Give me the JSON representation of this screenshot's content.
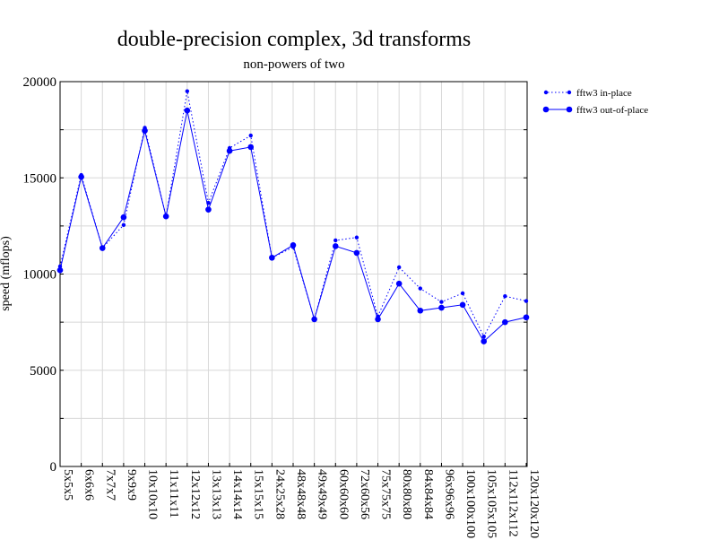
{
  "chart_data": {
    "type": "line",
    "title": "double-precision complex, 3d transforms",
    "subtitle": "non-powers of two",
    "xlabel": "",
    "ylabel": "speed (mflops)",
    "ylim": [
      0,
      20000
    ],
    "yticks": [
      "0",
      "5000",
      "10000",
      "15000",
      "20000"
    ],
    "grid": true,
    "legend_position": "top-right",
    "categories": [
      "5x5x5",
      "6x6x6",
      "7x7x7",
      "9x9x9",
      "10x10x10",
      "11x11x11",
      "12x12x12",
      "13x13x13",
      "14x14x14",
      "15x15x15",
      "24x25x28",
      "48x48x48",
      "49x49x49",
      "60x60x60",
      "72x60x56",
      "75x75x75",
      "80x80x80",
      "84x84x84",
      "96x96x96",
      "100x100x100",
      "105x105x105",
      "112x112x112",
      "120x120x120"
    ],
    "series": [
      {
        "name": "fftw3 in-place",
        "style": "dotted",
        "color": "#0000ff",
        "values": [
          10400,
          15150,
          11350,
          12550,
          17600,
          13000,
          19500,
          13700,
          16550,
          17200,
          10850,
          11400,
          7650,
          11750,
          11900,
          7800,
          10350,
          9250,
          8550,
          9000,
          6750,
          8850,
          8600
        ]
      },
      {
        "name": "fftw3 out-of-place",
        "style": "solid",
        "color": "#0000ff",
        "values": [
          10200,
          15050,
          11350,
          12950,
          17450,
          13000,
          18500,
          13350,
          16400,
          16600,
          10850,
          11500,
          7650,
          11450,
          11100,
          7650,
          9500,
          8100,
          8250,
          8400,
          6500,
          7500,
          7750
        ]
      }
    ]
  }
}
